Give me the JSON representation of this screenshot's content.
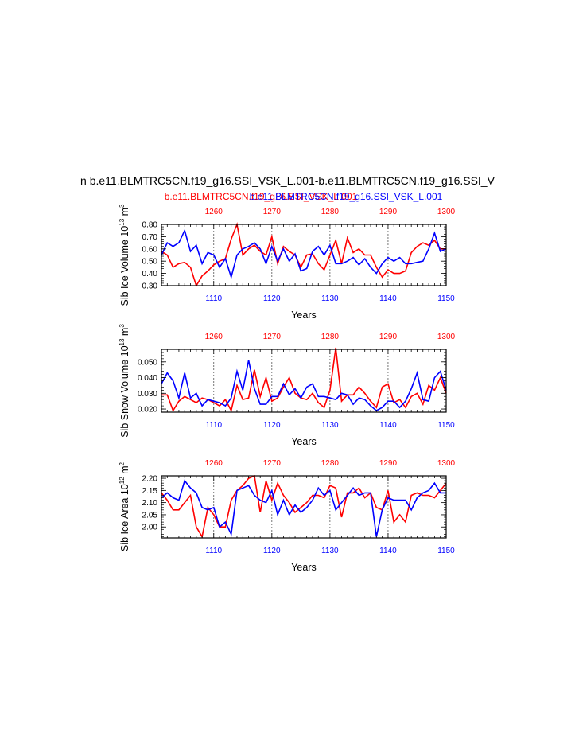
{
  "figure": {
    "title": "n b.e11.BLMTRC5CN.f19_g16.SSI_VSK_L.001-b.e11.BLMTRC5CN.f19_g16.SSI_V",
    "legend_red": "b.e11.BLMTRC5CN.f19_g16.SSI_VSK_L.001",
    "legend_blue": "b.e11.BLMTRC5CN.f19_g16.SSI_VSK_L.001"
  },
  "colors": {
    "red": "#ff0000",
    "blue": "#0000ff",
    "axis": "#000000",
    "grid": "#555555"
  },
  "chart_data": [
    {
      "type": "line",
      "ylabel_base": "Sib Ice Volume 10",
      "ylabel_exp": "13",
      "ylabel_unit": " m",
      "ylabel_unit_exp": "3",
      "xlabel": "Years",
      "ylim": [
        0.3,
        0.8
      ],
      "yticks": [
        "0.30",
        "0.40",
        "0.50",
        "0.60",
        "0.70",
        "0.80"
      ],
      "ytick_values": [
        0.3,
        0.4,
        0.5,
        0.6,
        0.7,
        0.8
      ],
      "bottom_axis": {
        "range": [
          1101,
          1150
        ],
        "ticks": [
          "1110",
          "1120",
          "1130",
          "1140",
          "1150"
        ],
        "tick_values": [
          1110,
          1120,
          1130,
          1140,
          1150
        ]
      },
      "top_axis": {
        "range": [
          1251,
          1300
        ],
        "ticks": [
          "1260",
          "1270",
          "1280",
          "1290",
          "1300"
        ],
        "tick_values": [
          1260,
          1270,
          1280,
          1290,
          1300
        ]
      },
      "vlines": [
        1110,
        1120,
        1130,
        1140
      ],
      "series": [
        {
          "color": "red",
          "axis": "top",
          "values": [
            0.58,
            0.55,
            0.45,
            0.48,
            0.49,
            0.45,
            0.3,
            0.38,
            0.42,
            0.47,
            0.5,
            0.52,
            0.68,
            0.8,
            0.55,
            0.6,
            0.63,
            0.58,
            0.55,
            0.7,
            0.48,
            0.62,
            0.58,
            0.55,
            0.45,
            0.55,
            0.56,
            0.48,
            0.43,
            0.55,
            0.67,
            0.48,
            0.69,
            0.57,
            0.6,
            0.55,
            0.55,
            0.45,
            0.37,
            0.43,
            0.4,
            0.4,
            0.42,
            0.57,
            0.62,
            0.65,
            0.63,
            0.67,
            0.6,
            0.6
          ]
        },
        {
          "color": "blue",
          "axis": "bottom",
          "values": [
            0.55,
            0.65,
            0.62,
            0.65,
            0.75,
            0.58,
            0.63,
            0.48,
            0.57,
            0.55,
            0.45,
            0.52,
            0.37,
            0.55,
            0.6,
            0.62,
            0.65,
            0.6,
            0.48,
            0.62,
            0.5,
            0.6,
            0.5,
            0.56,
            0.42,
            0.44,
            0.58,
            0.62,
            0.55,
            0.63,
            0.48,
            0.48,
            0.5,
            0.53,
            0.47,
            0.52,
            0.45,
            0.4,
            0.48,
            0.53,
            0.5,
            0.53,
            0.48,
            0.48,
            0.49,
            0.5,
            0.6,
            0.73,
            0.58,
            0.6
          ]
        }
      ]
    },
    {
      "type": "line",
      "ylabel_base": "Sib Snow Volume 10",
      "ylabel_exp": "13",
      "ylabel_unit": " m",
      "ylabel_unit_exp": "3",
      "xlabel": "Years",
      "ylim": [
        0.018,
        0.058
      ],
      "yticks": [
        "0.020",
        "0.030",
        "0.040",
        "0.050"
      ],
      "ytick_values": [
        0.02,
        0.03,
        0.04,
        0.05
      ],
      "bottom_axis": {
        "range": [
          1101,
          1150
        ],
        "ticks": [
          "1110",
          "1120",
          "1130",
          "1140",
          "1150"
        ],
        "tick_values": [
          1110,
          1120,
          1130,
          1140,
          1150
        ]
      },
      "top_axis": {
        "range": [
          1251,
          1300
        ],
        "ticks": [
          "1260",
          "1270",
          "1280",
          "1290",
          "1300"
        ],
        "tick_values": [
          1260,
          1270,
          1280,
          1290,
          1300
        ]
      },
      "vlines": [
        1110,
        1120,
        1130,
        1140
      ],
      "series": [
        {
          "color": "red",
          "axis": "top",
          "values": [
            0.029,
            0.029,
            0.019,
            0.025,
            0.028,
            0.026,
            0.024,
            0.027,
            0.026,
            0.024,
            0.022,
            0.026,
            0.019,
            0.035,
            0.026,
            0.027,
            0.045,
            0.028,
            0.04,
            0.025,
            0.027,
            0.034,
            0.04,
            0.03,
            0.027,
            0.026,
            0.03,
            0.024,
            0.021,
            0.032,
            0.059,
            0.025,
            0.029,
            0.029,
            0.034,
            0.03,
            0.025,
            0.021,
            0.034,
            0.036,
            0.024,
            0.026,
            0.021,
            0.028,
            0.03,
            0.023,
            0.035,
            0.032,
            0.04,
            0.03
          ]
        },
        {
          "color": "blue",
          "axis": "bottom",
          "values": [
            0.036,
            0.043,
            0.038,
            0.027,
            0.043,
            0.027,
            0.03,
            0.022,
            0.026,
            0.025,
            0.024,
            0.022,
            0.027,
            0.044,
            0.032,
            0.051,
            0.033,
            0.023,
            0.023,
            0.028,
            0.028,
            0.036,
            0.029,
            0.033,
            0.027,
            0.034,
            0.036,
            0.028,
            0.028,
            0.027,
            0.026,
            0.03,
            0.029,
            0.023,
            0.027,
            0.026,
            0.022,
            0.019,
            0.021,
            0.025,
            0.025,
            0.021,
            0.025,
            0.033,
            0.043,
            0.026,
            0.025,
            0.04,
            0.044,
            0.032
          ]
        }
      ]
    },
    {
      "type": "line",
      "ylabel_base": "Sib Ice Area 10",
      "ylabel_exp": "12",
      "ylabel_unit": " m",
      "ylabel_unit_exp": "2",
      "xlabel": "Years",
      "ylim": [
        1.955,
        2.21
      ],
      "yticks": [
        "2.00",
        "2.05",
        "2.10",
        "2.15",
        "2.20"
      ],
      "ytick_values": [
        2.0,
        2.05,
        2.1,
        2.15,
        2.2
      ],
      "bottom_axis": {
        "range": [
          1101,
          1150
        ],
        "ticks": [
          "1110",
          "1120",
          "1130",
          "1140",
          "1150"
        ],
        "tick_values": [
          1110,
          1120,
          1130,
          1140,
          1150
        ]
      },
      "top_axis": {
        "range": [
          1251,
          1300
        ],
        "ticks": [
          "1260",
          "1270",
          "1280",
          "1290",
          "1300"
        ],
        "tick_values": [
          1260,
          1270,
          1280,
          1290,
          1300
        ]
      },
      "vlines": [
        1110,
        1120,
        1130,
        1140
      ],
      "series": [
        {
          "color": "red",
          "axis": "top",
          "values": [
            2.14,
            2.11,
            2.07,
            2.07,
            2.1,
            2.13,
            2.0,
            1.96,
            2.08,
            2.05,
            2.0,
            2.0,
            2.11,
            2.15,
            2.17,
            2.2,
            2.21,
            2.06,
            2.19,
            2.11,
            2.18,
            2.13,
            2.1,
            2.06,
            2.08,
            2.1,
            2.13,
            2.13,
            2.12,
            2.17,
            2.16,
            2.04,
            2.14,
            2.14,
            2.16,
            2.12,
            2.14,
            2.08,
            2.07,
            2.15,
            2.02,
            2.05,
            2.02,
            2.13,
            2.14,
            2.13,
            2.13,
            2.12,
            2.15,
            2.18
          ]
        },
        {
          "color": "blue",
          "axis": "bottom",
          "values": [
            2.12,
            2.14,
            2.12,
            2.11,
            2.19,
            2.16,
            2.14,
            2.08,
            2.07,
            2.08,
            2.0,
            2.02,
            1.97,
            2.15,
            2.16,
            2.17,
            2.13,
            2.11,
            2.1,
            2.15,
            2.05,
            2.11,
            2.05,
            2.09,
            2.06,
            2.08,
            2.11,
            2.16,
            2.13,
            2.15,
            2.07,
            2.1,
            2.13,
            2.16,
            2.13,
            2.14,
            2.14,
            1.96,
            2.07,
            2.12,
            2.11,
            2.11,
            2.11,
            2.07,
            2.12,
            2.14,
            2.15,
            2.18,
            2.14,
            2.14
          ]
        }
      ]
    }
  ]
}
